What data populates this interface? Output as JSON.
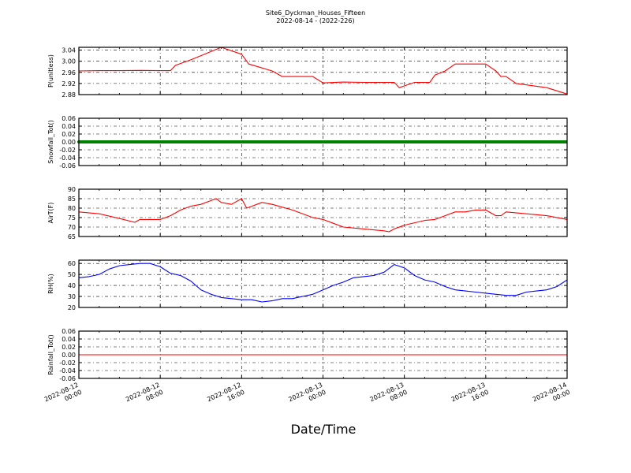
{
  "title": "Site6_Dyckman_Houses_Fifteen",
  "subtitle": "2022-08-14 - (2022-226)",
  "xlabel": "Date/Time",
  "x_ticks": [
    {
      "line1": "2022-08-12",
      "line2": "00:00"
    },
    {
      "line1": "2022-08-12",
      "line2": "08:00"
    },
    {
      "line1": "2022-08-12",
      "line2": "16:00"
    },
    {
      "line1": "2022-08-13",
      "line2": "00:00"
    },
    {
      "line1": "2022-08-13",
      "line2": "08:00"
    },
    {
      "line1": "2022-08-13",
      "line2": "16:00"
    },
    {
      "line1": "2022-08-14",
      "line2": "00:00"
    }
  ],
  "chart_data": [
    {
      "type": "line",
      "ylabel": "P(unitless)",
      "ylim": [
        2.88,
        3.05
      ],
      "yticks": [
        "3.04",
        "3.00",
        "2.96",
        "2.92",
        "2.88"
      ],
      "ytick_values": [
        3.04,
        3.0,
        2.96,
        2.92,
        2.88
      ],
      "color": "#ff0000",
      "grid": true,
      "x_hours": [
        0,
        2,
        4,
        6,
        8,
        9,
        9.5,
        11,
        12,
        14,
        16,
        16.7,
        19,
        20,
        21.5,
        23,
        24,
        26,
        28,
        30,
        31,
        31.5,
        33,
        34.5,
        35,
        36,
        37,
        38,
        40,
        41,
        41.5,
        42,
        43,
        46,
        48
      ],
      "values": [
        2.965,
        2.966,
        2.966,
        2.967,
        2.966,
        2.966,
        2.985,
        3.005,
        3.02,
        3.05,
        3.025,
        2.99,
        2.965,
        2.945,
        2.945,
        2.945,
        2.922,
        2.925,
        2.924,
        2.924,
        2.924,
        2.905,
        2.924,
        2.924,
        2.95,
        2.965,
        2.99,
        2.99,
        2.99,
        2.965,
        2.945,
        2.945,
        2.92,
        2.905,
        2.882
      ]
    },
    {
      "type": "line",
      "ylabel": "Snowfall_Tot()",
      "ylim": [
        -0.06,
        0.06
      ],
      "yticks": [
        "0.06",
        "0.04",
        "0.02",
        "0.00",
        "-0.02",
        "-0.04",
        "-0.06"
      ],
      "ytick_values": [
        0.06,
        0.04,
        0.02,
        0.0,
        -0.02,
        -0.04,
        -0.06
      ],
      "color": "#008000",
      "markers": true,
      "grid": true,
      "x_hours": [
        0,
        48
      ],
      "values": [
        0.0,
        0.0
      ]
    },
    {
      "type": "line",
      "ylabel": "AirT(F)",
      "ylim": [
        65,
        90
      ],
      "yticks": [
        "90",
        "85",
        "80",
        "75",
        "70",
        "65"
      ],
      "ytick_values": [
        90,
        85,
        80,
        75,
        70,
        65
      ],
      "color": "#ff0000",
      "grid": true,
      "x_hours": [
        0,
        2,
        4,
        5.5,
        6,
        8,
        9,
        10,
        11,
        12,
        13,
        13.5,
        14,
        15,
        16,
        16.5,
        17,
        18,
        19,
        21,
        23,
        24,
        25,
        26,
        28,
        30,
        30.5,
        31,
        32,
        34,
        35,
        36,
        37,
        38,
        39,
        40,
        41,
        41.5,
        42,
        44,
        46,
        48
      ],
      "values": [
        78,
        77,
        74.5,
        72.5,
        74,
        74,
        76,
        79,
        81,
        82,
        84,
        85,
        83,
        82,
        85,
        80,
        81,
        83,
        82,
        79,
        75,
        74,
        72,
        70,
        69,
        68,
        67.5,
        69,
        71,
        73.5,
        74,
        76,
        78,
        78,
        79,
        79,
        76,
        76,
        78,
        77,
        76,
        74
      ]
    },
    {
      "type": "line",
      "ylabel": "RH(%)",
      "ylim": [
        20,
        63
      ],
      "yticks": [
        "60",
        "50",
        "40",
        "30",
        "20"
      ],
      "ytick_values": [
        60,
        50,
        40,
        30,
        20
      ],
      "color": "#0000ff",
      "grid": true,
      "x_hours": [
        0,
        1,
        2,
        3,
        4,
        5,
        6,
        7,
        8,
        9,
        10,
        11,
        12,
        13,
        14,
        15,
        16,
        17,
        18,
        19,
        20,
        21,
        22,
        23,
        24,
        25,
        26,
        27,
        28,
        29,
        30,
        31,
        32,
        33,
        34,
        35,
        36,
        37,
        38,
        39,
        40,
        41,
        42,
        43,
        44,
        45,
        46,
        47,
        48
      ],
      "values": [
        47,
        48,
        50,
        55,
        58,
        59,
        60,
        60,
        57,
        51,
        49,
        44,
        36,
        32,
        29,
        28,
        27,
        27,
        25,
        26,
        28,
        28,
        30,
        32,
        36,
        40,
        43,
        47,
        48,
        49,
        52,
        59,
        56,
        49,
        45,
        43,
        39,
        36,
        35,
        34,
        33,
        32,
        31,
        31,
        34,
        35,
        36,
        39,
        45
      ]
    },
    {
      "type": "line",
      "ylabel": "Rainfall_Tot()",
      "ylim": [
        -0.06,
        0.06
      ],
      "yticks": [
        "0.06",
        "0.04",
        "0.02",
        "0.00",
        "-0.02",
        "-0.04",
        "-0.06"
      ],
      "ytick_values": [
        0.06,
        0.04,
        0.02,
        0.0,
        -0.02,
        -0.04,
        -0.06
      ],
      "color": "#ff0000",
      "grid": true,
      "x_hours": [
        0,
        48
      ],
      "values": [
        0.0,
        0.0
      ]
    }
  ]
}
